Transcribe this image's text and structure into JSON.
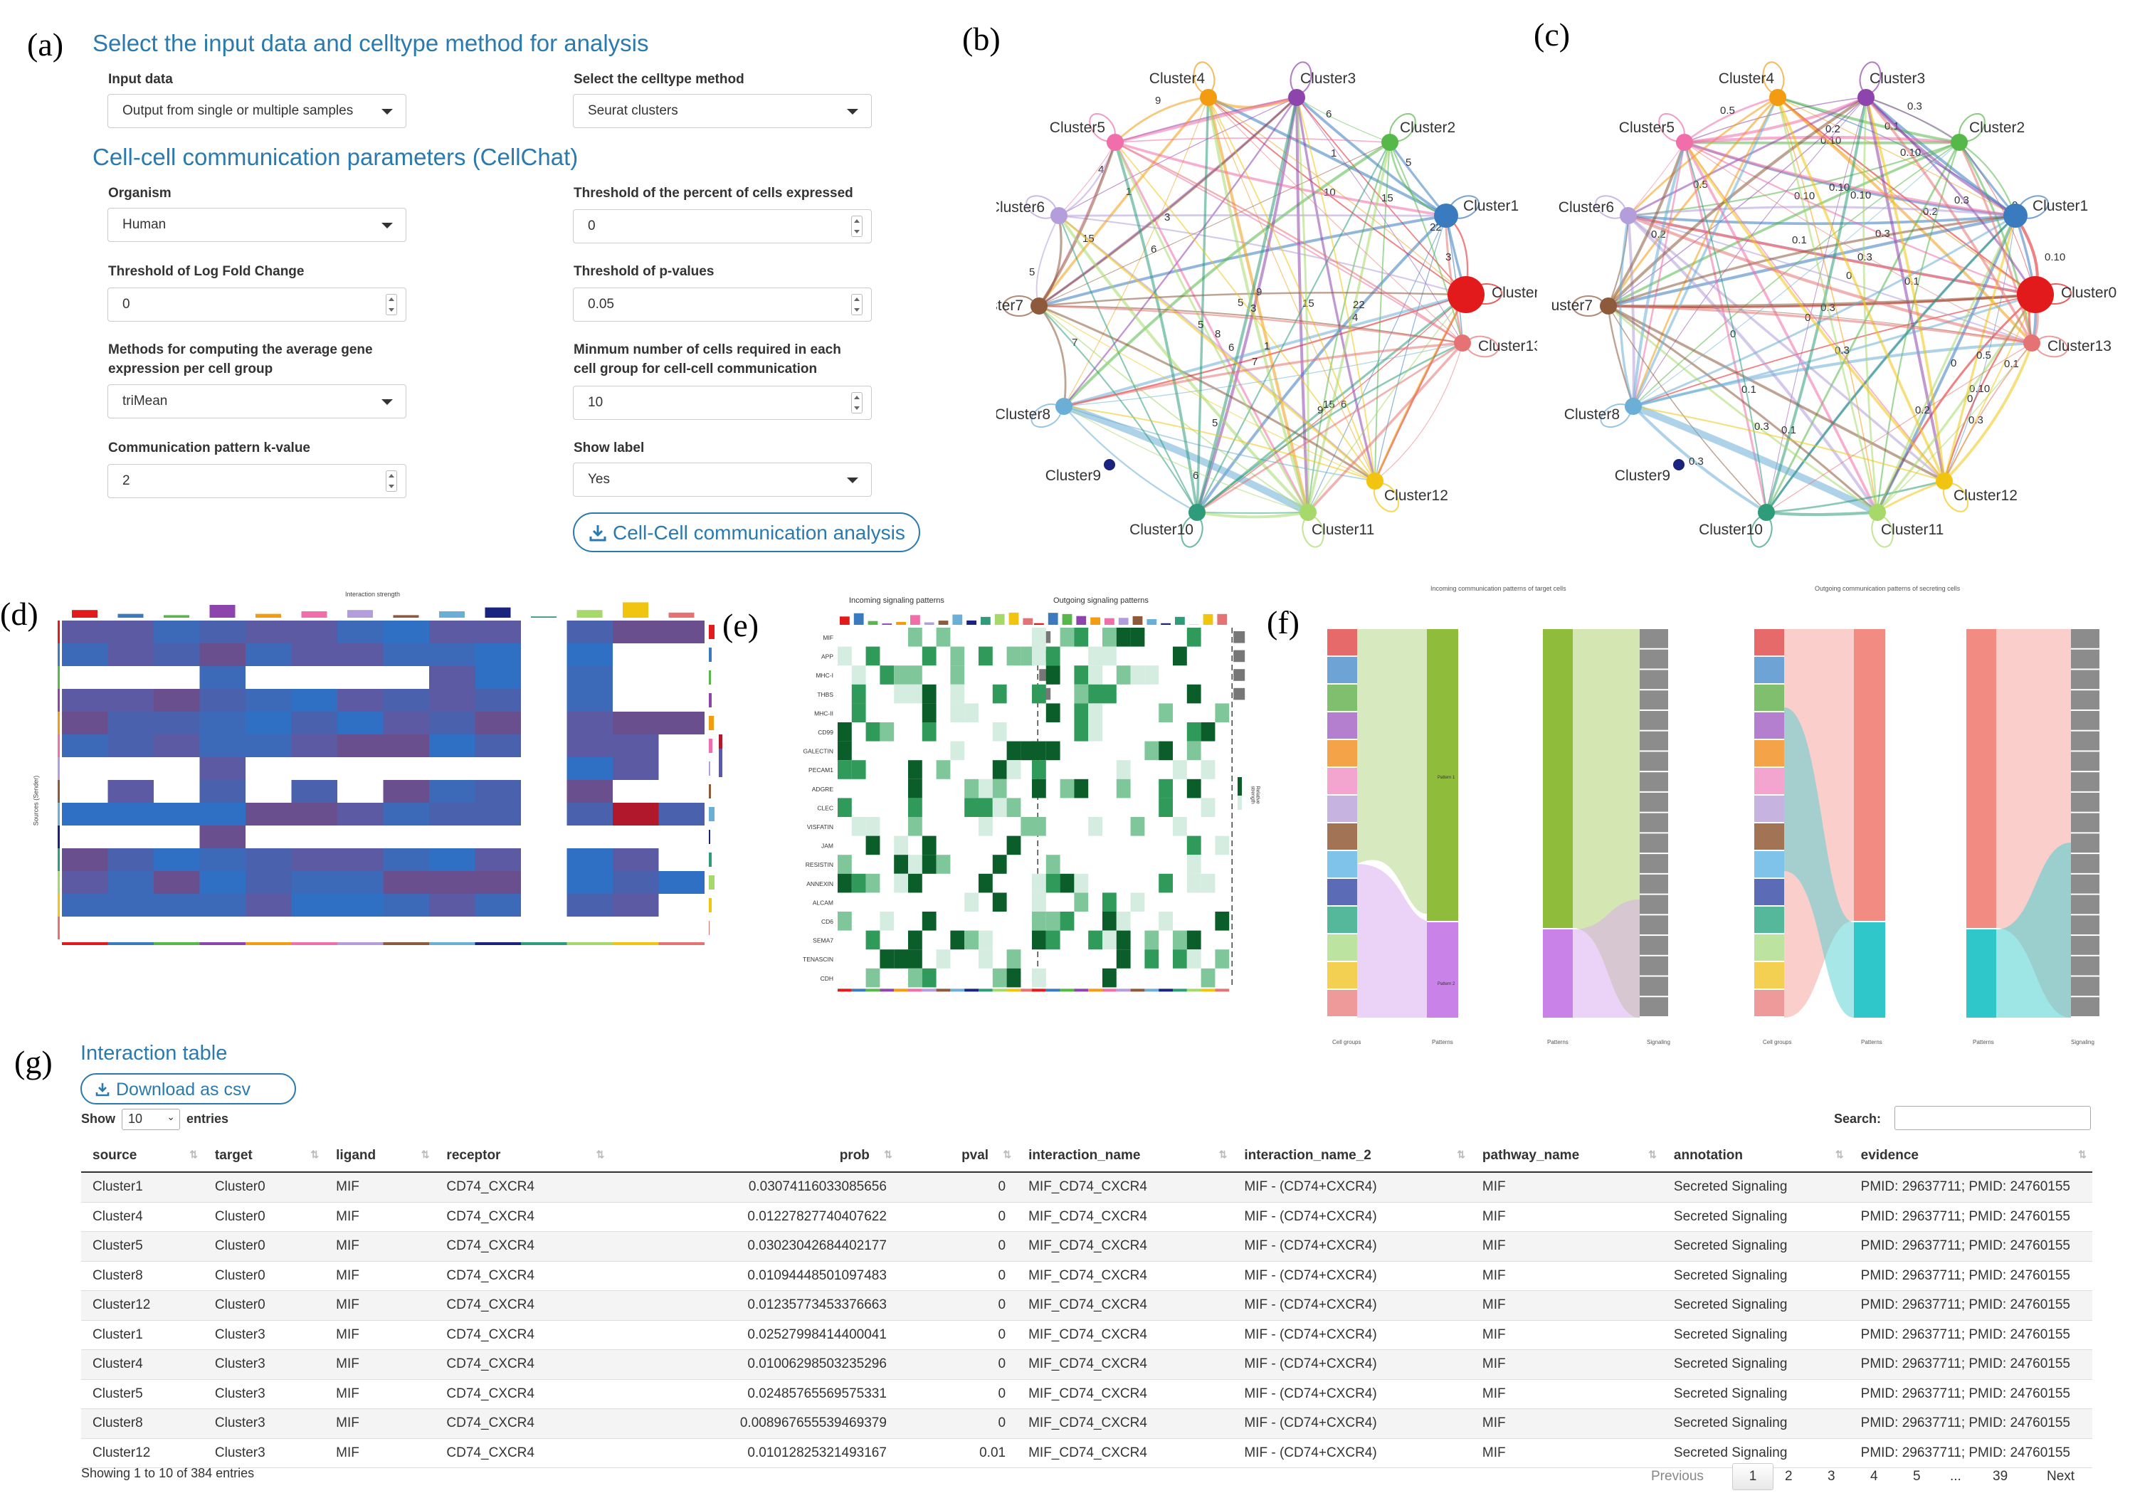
{
  "panels": {
    "a": "(a)",
    "b": "(b)",
    "c": "(c)",
    "d": "(d)",
    "e": "(e)",
    "f": "(f)",
    "g": "(g)"
  },
  "form": {
    "section1_title": "Select the input data and celltype method for analysis",
    "input_data_label": "Input data",
    "input_data_value": "Output from single or multiple samples",
    "celltype_label": "Select the celltype method",
    "celltype_value": "Seurat clusters",
    "section2_title": "Cell-cell communication parameters (CellChat)",
    "organism_label": "Organism",
    "organism_value": "Human",
    "pct_label": "Threshold of the percent of cells expressed",
    "pct_value": "0",
    "logfc_label": "Threshold of Log Fold Change",
    "logfc_value": "0",
    "pval_label": "Threshold of p-values",
    "pval_value": "0.05",
    "avg_label_1": "Methods for computing the average gene",
    "avg_label_2": "expression per cell group",
    "avg_value": "triMean",
    "mincells_label_1": "Minmum number of cells required in each",
    "mincells_label_2": "cell group for cell-cell communication",
    "mincells_value": "10",
    "k_label": "Communication pattern k-value",
    "k_value": "2",
    "showlabel_label": "Show label",
    "showlabel_value": "Yes",
    "run_button": "Cell-Cell communication analysis"
  },
  "network_b": {
    "clusters": [
      "Cluster0",
      "Cluster1",
      "Cluster2",
      "Cluster3",
      "Cluster4",
      "Cluster5",
      "Cluster6",
      "Cluster7",
      "Cluster8",
      "Cluster9",
      "Cluster10",
      "Cluster11",
      "Cluster12",
      "Cluster13"
    ],
    "colors": [
      "#e31a1c",
      "#3a7bbf",
      "#55b849",
      "#8e44ad",
      "#f39c12",
      "#f06eaa",
      "#b39ddb",
      "#8d5a3b",
      "#6baed6",
      "#1a237e",
      "#2e9c7a",
      "#a6d96a",
      "#f1c40f",
      "#e57373"
    ],
    "edge_labels": [
      "3",
      "4",
      "5",
      "1",
      "2",
      "6",
      "8",
      "7",
      "9",
      "10",
      "22",
      "17",
      "15"
    ]
  },
  "network_c": {
    "edge_labels": [
      "0",
      "0.1",
      "0.2",
      "0.3",
      "0.5",
      "0.10"
    ]
  },
  "heatmap_d": {
    "title": "Interaction strength",
    "ylabel": "Sources (Sender)"
  },
  "heatmap_e": {
    "title_in": "Incoming signaling patterns",
    "title_out": "Outgoing signaling patterns",
    "rows": [
      "MIF",
      "APP",
      "MHC-I",
      "THBS",
      "MHC-II",
      "CD99",
      "GALECTIN",
      "PECAM1",
      "ADGRE",
      "CLEC",
      "VISFATIN",
      "JAM",
      "RESISTIN",
      "ANNEXIN",
      "ALCAM",
      "CD6",
      "SEMA7",
      "TENASCIN",
      "CDH"
    ],
    "legend": "Relative strength"
  },
  "alluvial_f": {
    "title_in": "Incoming communication patterns of target cells",
    "title_out": "Outgoing communication patterns of secreting cells",
    "axis_cells": "Cell groups",
    "axis_patterns": "Patterns",
    "axis_signaling": "Signaling",
    "pattern1": "Pattern 1",
    "pattern2": "Pattern 2"
  },
  "table": {
    "title": "Interaction table",
    "download": "Download as csv",
    "show": "Show",
    "entries_value": "10",
    "entries": "entries",
    "search": "Search:",
    "columns": [
      "source",
      "target",
      "ligand",
      "receptor",
      "prob",
      "pval",
      "interaction_name",
      "interaction_name_2",
      "pathway_name",
      "annotation",
      "evidence"
    ],
    "rows": [
      [
        "Cluster1",
        "Cluster0",
        "MIF",
        "CD74_CXCR4",
        "0.03074116033085656",
        "0",
        "MIF_CD74_CXCR4",
        "MIF - (CD74+CXCR4)",
        "MIF",
        "Secreted Signaling",
        "PMID: 29637711; PMID: 24760155"
      ],
      [
        "Cluster4",
        "Cluster0",
        "MIF",
        "CD74_CXCR4",
        "0.01227827740407622",
        "0",
        "MIF_CD74_CXCR4",
        "MIF - (CD74+CXCR4)",
        "MIF",
        "Secreted Signaling",
        "PMID: 29637711; PMID: 24760155"
      ],
      [
        "Cluster5",
        "Cluster0",
        "MIF",
        "CD74_CXCR4",
        "0.03023042684402177",
        "0",
        "MIF_CD74_CXCR4",
        "MIF - (CD74+CXCR4)",
        "MIF",
        "Secreted Signaling",
        "PMID: 29637711; PMID: 24760155"
      ],
      [
        "Cluster8",
        "Cluster0",
        "MIF",
        "CD74_CXCR4",
        "0.01094448501097483",
        "0",
        "MIF_CD74_CXCR4",
        "MIF - (CD74+CXCR4)",
        "MIF",
        "Secreted Signaling",
        "PMID: 29637711; PMID: 24760155"
      ],
      [
        "Cluster12",
        "Cluster0",
        "MIF",
        "CD74_CXCR4",
        "0.01235773453376663",
        "0",
        "MIF_CD74_CXCR4",
        "MIF - (CD74+CXCR4)",
        "MIF",
        "Secreted Signaling",
        "PMID: 29637711; PMID: 24760155"
      ],
      [
        "Cluster1",
        "Cluster3",
        "MIF",
        "CD74_CXCR4",
        "0.02527998414400041",
        "0",
        "MIF_CD74_CXCR4",
        "MIF - (CD74+CXCR4)",
        "MIF",
        "Secreted Signaling",
        "PMID: 29637711; PMID: 24760155"
      ],
      [
        "Cluster4",
        "Cluster3",
        "MIF",
        "CD74_CXCR4",
        "0.01006298503235296",
        "0",
        "MIF_CD74_CXCR4",
        "MIF - (CD74+CXCR4)",
        "MIF",
        "Secreted Signaling",
        "PMID: 29637711; PMID: 24760155"
      ],
      [
        "Cluster5",
        "Cluster3",
        "MIF",
        "CD74_CXCR4",
        "0.02485765569575331",
        "0",
        "MIF_CD74_CXCR4",
        "MIF - (CD74+CXCR4)",
        "MIF",
        "Secreted Signaling",
        "PMID: 29637711; PMID: 24760155"
      ],
      [
        "Cluster8",
        "Cluster3",
        "MIF",
        "CD74_CXCR4",
        "0.008967655539469379",
        "0",
        "MIF_CD74_CXCR4",
        "MIF - (CD74+CXCR4)",
        "MIF",
        "Secreted Signaling",
        "PMID: 29637711; PMID: 24760155"
      ],
      [
        "Cluster12",
        "Cluster3",
        "MIF",
        "CD74_CXCR4",
        "0.01012825321493167",
        "0.01",
        "MIF_CD74_CXCR4",
        "MIF - (CD74+CXCR4)",
        "MIF",
        "Secreted Signaling",
        "PMID: 29637711; PMID: 24760155"
      ]
    ],
    "info": "Showing 1 to 10 of 384 entries",
    "pagination": {
      "previous": "Previous",
      "pages": [
        "1",
        "2",
        "3",
        "4",
        "5",
        "...",
        "39"
      ],
      "next": "Next"
    }
  }
}
